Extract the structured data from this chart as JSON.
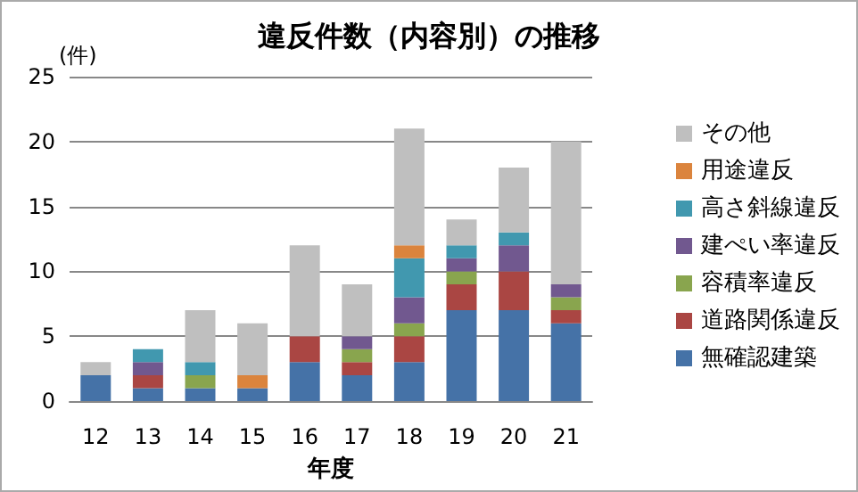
{
  "chart_data": {
    "type": "bar",
    "title": "違反件数（内容別）の推移",
    "ylabel": "(件)",
    "xlabel": "年度",
    "categories": [
      "12",
      "13",
      "14",
      "15",
      "16",
      "17",
      "18",
      "19",
      "20",
      "21"
    ],
    "stacked": true,
    "series": [
      {
        "name": "無確認建築",
        "color": "#4572a7",
        "values": [
          2,
          1,
          1,
          1,
          3,
          2,
          3,
          7,
          7,
          6
        ]
      },
      {
        "name": "道路関係違反",
        "color": "#aa4643",
        "values": [
          null,
          1,
          null,
          null,
          2,
          1,
          2,
          2,
          3,
          1
        ]
      },
      {
        "name": "容積率違反",
        "color": "#89a54e",
        "values": [
          null,
          null,
          1,
          null,
          null,
          1,
          1,
          1,
          null,
          1
        ]
      },
      {
        "name": "建ぺい率違反",
        "color": "#71588f",
        "values": [
          null,
          1,
          null,
          null,
          null,
          1,
          2,
          1,
          2,
          1
        ]
      },
      {
        "name": "高さ斜線違反",
        "color": "#4198af",
        "values": [
          null,
          1,
          1,
          null,
          null,
          null,
          3,
          1,
          1,
          null
        ]
      },
      {
        "name": "用途違反",
        "color": "#db843d",
        "values": [
          null,
          null,
          null,
          1,
          null,
          null,
          1,
          null,
          null,
          null
        ]
      },
      {
        "name": "その他",
        "color": "#bfbfbf",
        "values": [
          1,
          null,
          4,
          4,
          7,
          4,
          9,
          2,
          5,
          11
        ]
      }
    ],
    "ylim": [
      0,
      25
    ],
    "yticks": [
      0,
      5,
      10,
      15,
      20,
      25
    ],
    "grid": "y",
    "legend": "right"
  }
}
